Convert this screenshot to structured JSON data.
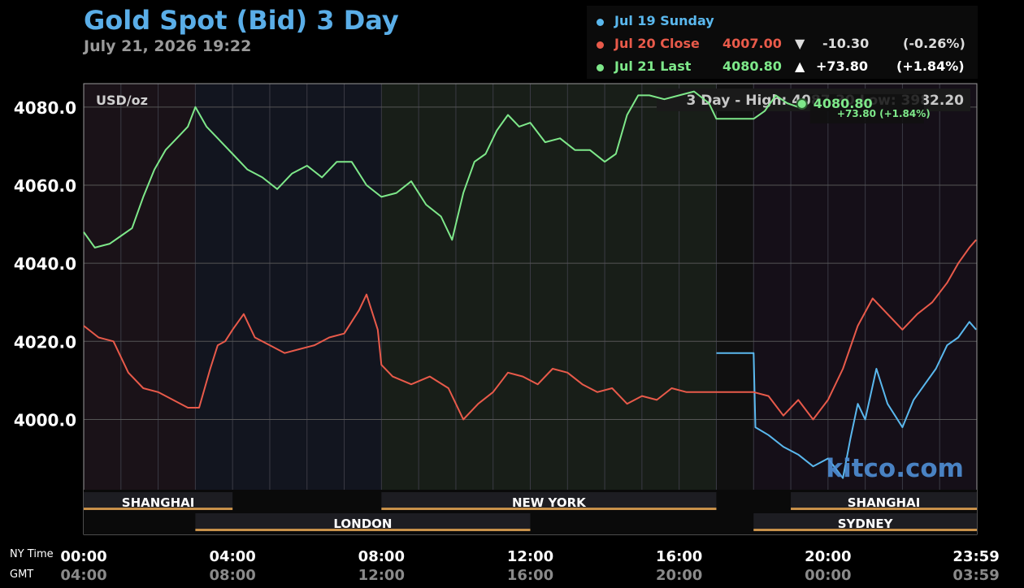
{
  "header": {
    "title": "Gold Spot (Bid) 3 Day",
    "datetime": "July 21, 2026 19:22"
  },
  "legend": [
    {
      "label": "Jul 19 Sunday",
      "color": "#5ab8ee",
      "price": "",
      "arrow": "",
      "change": "",
      "pct": ""
    },
    {
      "label": "Jul 20 Close",
      "color": "#e85a4a",
      "price": "4007.00",
      "arrow": "▼",
      "change": "-10.30",
      "pct": "(-0.26%)"
    },
    {
      "label": "Jul 21 Last",
      "color": "#7ee88a",
      "price": "4080.80",
      "arrow": "▲",
      "change": "+73.80",
      "pct": "(+1.84%)"
    }
  ],
  "chart_data": {
    "type": "line",
    "unit_label": "USD/oz",
    "high_low_text": "3 Day - High: 4087.30  Low: 3982.20",
    "last_label": "4080.80",
    "last_change": "+73.80 (+1.84%)",
    "watermark": "kitco.com",
    "ylim": [
      3982,
      4086
    ],
    "y_ticks": [
      "4080.0",
      "4060.0",
      "4040.0",
      "4020.0",
      "4000.0"
    ],
    "y_tick_values": [
      4080,
      4060,
      4040,
      4020,
      4000
    ],
    "xlim": [
      0,
      24
    ],
    "ny_label": "NY Time",
    "gmt_label": "GMT",
    "x_ticks_ny": [
      "00:00",
      "04:00",
      "08:00",
      "12:00",
      "16:00",
      "20:00",
      "23:59"
    ],
    "x_ticks_gmt": [
      "04:00",
      "08:00",
      "12:00",
      "16:00",
      "20:00",
      "00:00",
      "03:59"
    ],
    "x_tick_hours": [
      0,
      4,
      8,
      12,
      16,
      20,
      23.98
    ],
    "sessions": [
      {
        "name": "SHANGHAI",
        "start": 0,
        "end": 4,
        "row": 0
      },
      {
        "name": "NEW YORK",
        "start": 8,
        "end": 17,
        "row": 0
      },
      {
        "name": "SHANGHAI",
        "start": 19,
        "end": 24,
        "row": 0
      },
      {
        "name": "LONDON",
        "start": 3,
        "end": 12,
        "row": 1
      },
      {
        "name": "SYDNEY",
        "start": 18,
        "end": 24,
        "row": 1
      }
    ],
    "session_shading": [
      {
        "start": 0,
        "end": 3,
        "color": "#1a1218"
      },
      {
        "start": 3,
        "end": 8,
        "color": "#12151f"
      },
      {
        "start": 8,
        "end": 17,
        "color": "#181e18"
      },
      {
        "start": 17,
        "end": 18,
        "color": "#101010"
      },
      {
        "start": 18,
        "end": 24,
        "color": "#150f18"
      }
    ],
    "series": [
      {
        "name": "Jul 19 Sunday",
        "color": "#5ab8ee",
        "x": [
          17,
          18,
          18.05,
          18.4,
          18.8,
          19.2,
          19.6,
          20.0,
          20.4,
          20.6,
          20.8,
          21.0,
          21.3,
          21.6,
          21.8,
          22.0,
          22.3,
          22.6,
          22.9,
          23.2,
          23.5,
          23.8,
          23.98
        ],
        "y": [
          4017,
          4017,
          3998,
          3996,
          3993,
          3991,
          3988,
          3990,
          3985,
          3995,
          4004,
          4000,
          4013,
          4004,
          4001,
          3998,
          4005,
          4009,
          4013,
          4019,
          4021,
          4025,
          4023
        ]
      },
      {
        "name": "Jul 20 Close",
        "color": "#e85a4a",
        "x": [
          0,
          0.4,
          0.8,
          1.2,
          1.6,
          2.0,
          2.4,
          2.8,
          3.1,
          3.4,
          3.6,
          3.8,
          4.0,
          4.3,
          4.6,
          5.0,
          5.4,
          5.8,
          6.2,
          6.6,
          7.0,
          7.4,
          7.6,
          7.9,
          8.0,
          8.3,
          8.8,
          9.3,
          9.8,
          10.2,
          10.6,
          11.0,
          11.4,
          11.8,
          12.2,
          12.6,
          13.0,
          13.4,
          13.8,
          14.2,
          14.6,
          15.0,
          15.4,
          15.8,
          16.2,
          16.6,
          17.0,
          18.0,
          18.4,
          18.8,
          19.2,
          19.6,
          20.0,
          20.4,
          20.8,
          21.2,
          21.6,
          22.0,
          22.4,
          22.8,
          23.2,
          23.5,
          23.8,
          23.98
        ],
        "y": [
          4024,
          4021,
          4020,
          4012,
          4008,
          4007,
          4005,
          4003,
          4003,
          4013,
          4019,
          4020,
          4023,
          4027,
          4021,
          4019,
          4017,
          4018,
          4019,
          4021,
          4022,
          4028,
          4032,
          4023,
          4014,
          4011,
          4009,
          4011,
          4008,
          4000,
          4004,
          4007,
          4012,
          4011,
          4009,
          4013,
          4012,
          4009,
          4007,
          4008,
          4004,
          4006,
          4005,
          4008,
          4007,
          4007,
          4007,
          4007,
          4006,
          4001,
          4005,
          4000,
          4005,
          4013,
          4024,
          4031,
          4027,
          4023,
          4027,
          4030,
          4035,
          4040,
          4044,
          4046
        ]
      },
      {
        "name": "Jul 21 Last",
        "color": "#7ee88a",
        "x": [
          0,
          0.3,
          0.7,
          1.0,
          1.3,
          1.6,
          1.9,
          2.2,
          2.5,
          2.8,
          3.0,
          3.3,
          3.6,
          4.0,
          4.4,
          4.8,
          5.2,
          5.6,
          6.0,
          6.4,
          6.8,
          7.2,
          7.6,
          8.0,
          8.4,
          8.8,
          9.2,
          9.6,
          9.9,
          10.2,
          10.5,
          10.8,
          11.1,
          11.4,
          11.7,
          12.0,
          12.4,
          12.8,
          13.2,
          13.6,
          14.0,
          14.3,
          14.6,
          14.9,
          15.2,
          15.6,
          16.0,
          16.4,
          16.8,
          17.0,
          18.0,
          18.3,
          18.6,
          18.9,
          19.2,
          19.3
        ],
        "y": [
          4048,
          4044,
          4045,
          4047,
          4049,
          4057,
          4064,
          4069,
          4072,
          4075,
          4080,
          4075,
          4072,
          4068,
          4064,
          4062,
          4059,
          4063,
          4065,
          4062,
          4066,
          4066,
          4060,
          4057,
          4058,
          4061,
          4055,
          4052,
          4046,
          4058,
          4066,
          4068,
          4074,
          4078,
          4075,
          4076,
          4071,
          4072,
          4069,
          4069,
          4066,
          4068,
          4078,
          4083,
          4083,
          4082,
          4083,
          4084,
          4081,
          4077,
          4077,
          4079,
          4083,
          4081,
          4080,
          4080.8
        ]
      }
    ]
  }
}
